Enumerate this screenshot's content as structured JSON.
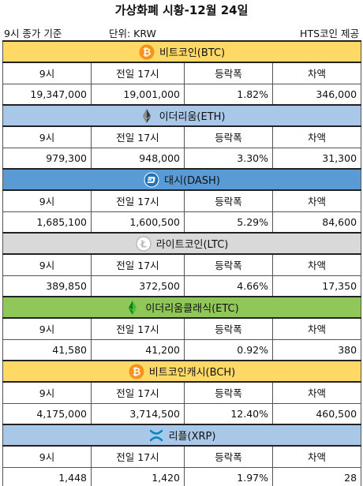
{
  "title": "가상화폐 시황-12월 24일",
  "meta": {
    "time_basis": "9시 종가 기준",
    "unit": "단위: KRW",
    "provider": "HTS코인 제공"
  },
  "column_labels": [
    "9시",
    "전일 17시",
    "등락폭",
    "차액"
  ],
  "coins": [
    {
      "name": "비트코인(BTC)",
      "icon": "bitcoin-icon",
      "bg": "#ffd966",
      "values": [
        "19,347,000",
        "19,001,000",
        "1.82%",
        "346,000"
      ]
    },
    {
      "name": "이더리움(ETH)",
      "icon": "ethereum-icon",
      "bg": "#a9c8e8",
      "values": [
        "979,300",
        "948,000",
        "3.30%",
        "31,300"
      ]
    },
    {
      "name": "대시(DASH)",
      "icon": "dash-icon",
      "bg": "#5b9bd5",
      "values": [
        "1,685,100",
        "1,600,500",
        "5.29%",
        "84,600"
      ]
    },
    {
      "name": "라이트코인(LTC)",
      "icon": "litecoin-icon",
      "bg": "#d9d9d9",
      "values": [
        "389,850",
        "372,500",
        "4.66%",
        "17,350"
      ]
    },
    {
      "name": "이더리움클래식(ETC)",
      "icon": "ethereum-classic-icon",
      "bg": "#8fc859",
      "values": [
        "41,580",
        "41,200",
        "0.92%",
        "380"
      ]
    },
    {
      "name": "비트코인캐시(BCH)",
      "icon": "bitcoin-cash-icon",
      "bg": "#ffd966",
      "values": [
        "4,175,000",
        "3,714,500",
        "12.40%",
        "460,500"
      ]
    },
    {
      "name": "리플(XRP)",
      "icon": "ripple-icon",
      "bg": "#a9c8e8",
      "values": [
        "1,448",
        "1,420",
        "1.97%",
        "28"
      ]
    }
  ]
}
